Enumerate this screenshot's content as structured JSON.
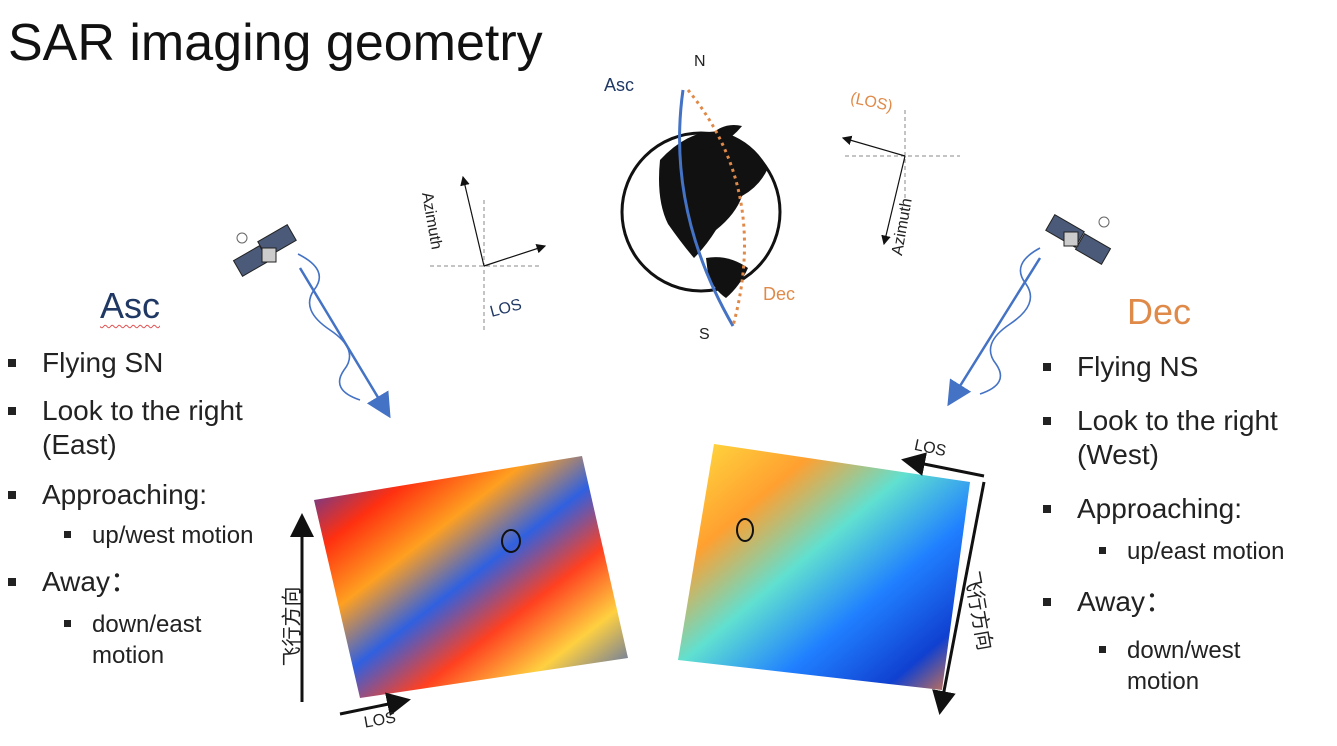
{
  "title": "SAR imaging geometry",
  "globe": {
    "north": "N",
    "south": "S",
    "asc": "Asc",
    "dec": "Dec"
  },
  "asc_axes": {
    "azimuth": "Azimuth",
    "los": "LOS"
  },
  "dec_axes": {
    "azimuth": "Azimuth",
    "los": "(LOS)"
  },
  "asc": {
    "heading": "Asc",
    "items": [
      {
        "text": "Flying SN",
        "level": 1
      },
      {
        "text": "Look to the right",
        "level": 1
      },
      {
        "text": "(East)",
        "level": 1
      },
      {
        "text": "Approaching:",
        "level": 1
      },
      {
        "text": "up/west motion",
        "level": 2
      },
      {
        "text": "Away：",
        "level": 1
      },
      {
        "text": "down/east",
        "level": 2
      },
      {
        "text": "motion",
        "level": 2
      }
    ]
  },
  "dec": {
    "heading": "Dec",
    "items": [
      {
        "text": "Flying NS",
        "level": 1
      },
      {
        "text": "Look to the right",
        "level": 1
      },
      {
        "text": "(West)",
        "level": 1
      },
      {
        "text": "Approaching:",
        "level": 1
      },
      {
        "text": "up/east motion",
        "level": 2
      },
      {
        "text": "Away：",
        "level": 1
      },
      {
        "text": "down/west",
        "level": 2
      },
      {
        "text": "motion",
        "level": 2
      }
    ]
  },
  "asc_image": {
    "flight": "飞行方向",
    "los": "LOS"
  },
  "dec_image": {
    "flight": "飞行方向",
    "los": "LOS"
  },
  "colors": {
    "asc": "#1f3864",
    "dec": "#e08a4a",
    "orbit_asc": "#4472c4",
    "orbit_dec": "#e08a4a"
  }
}
